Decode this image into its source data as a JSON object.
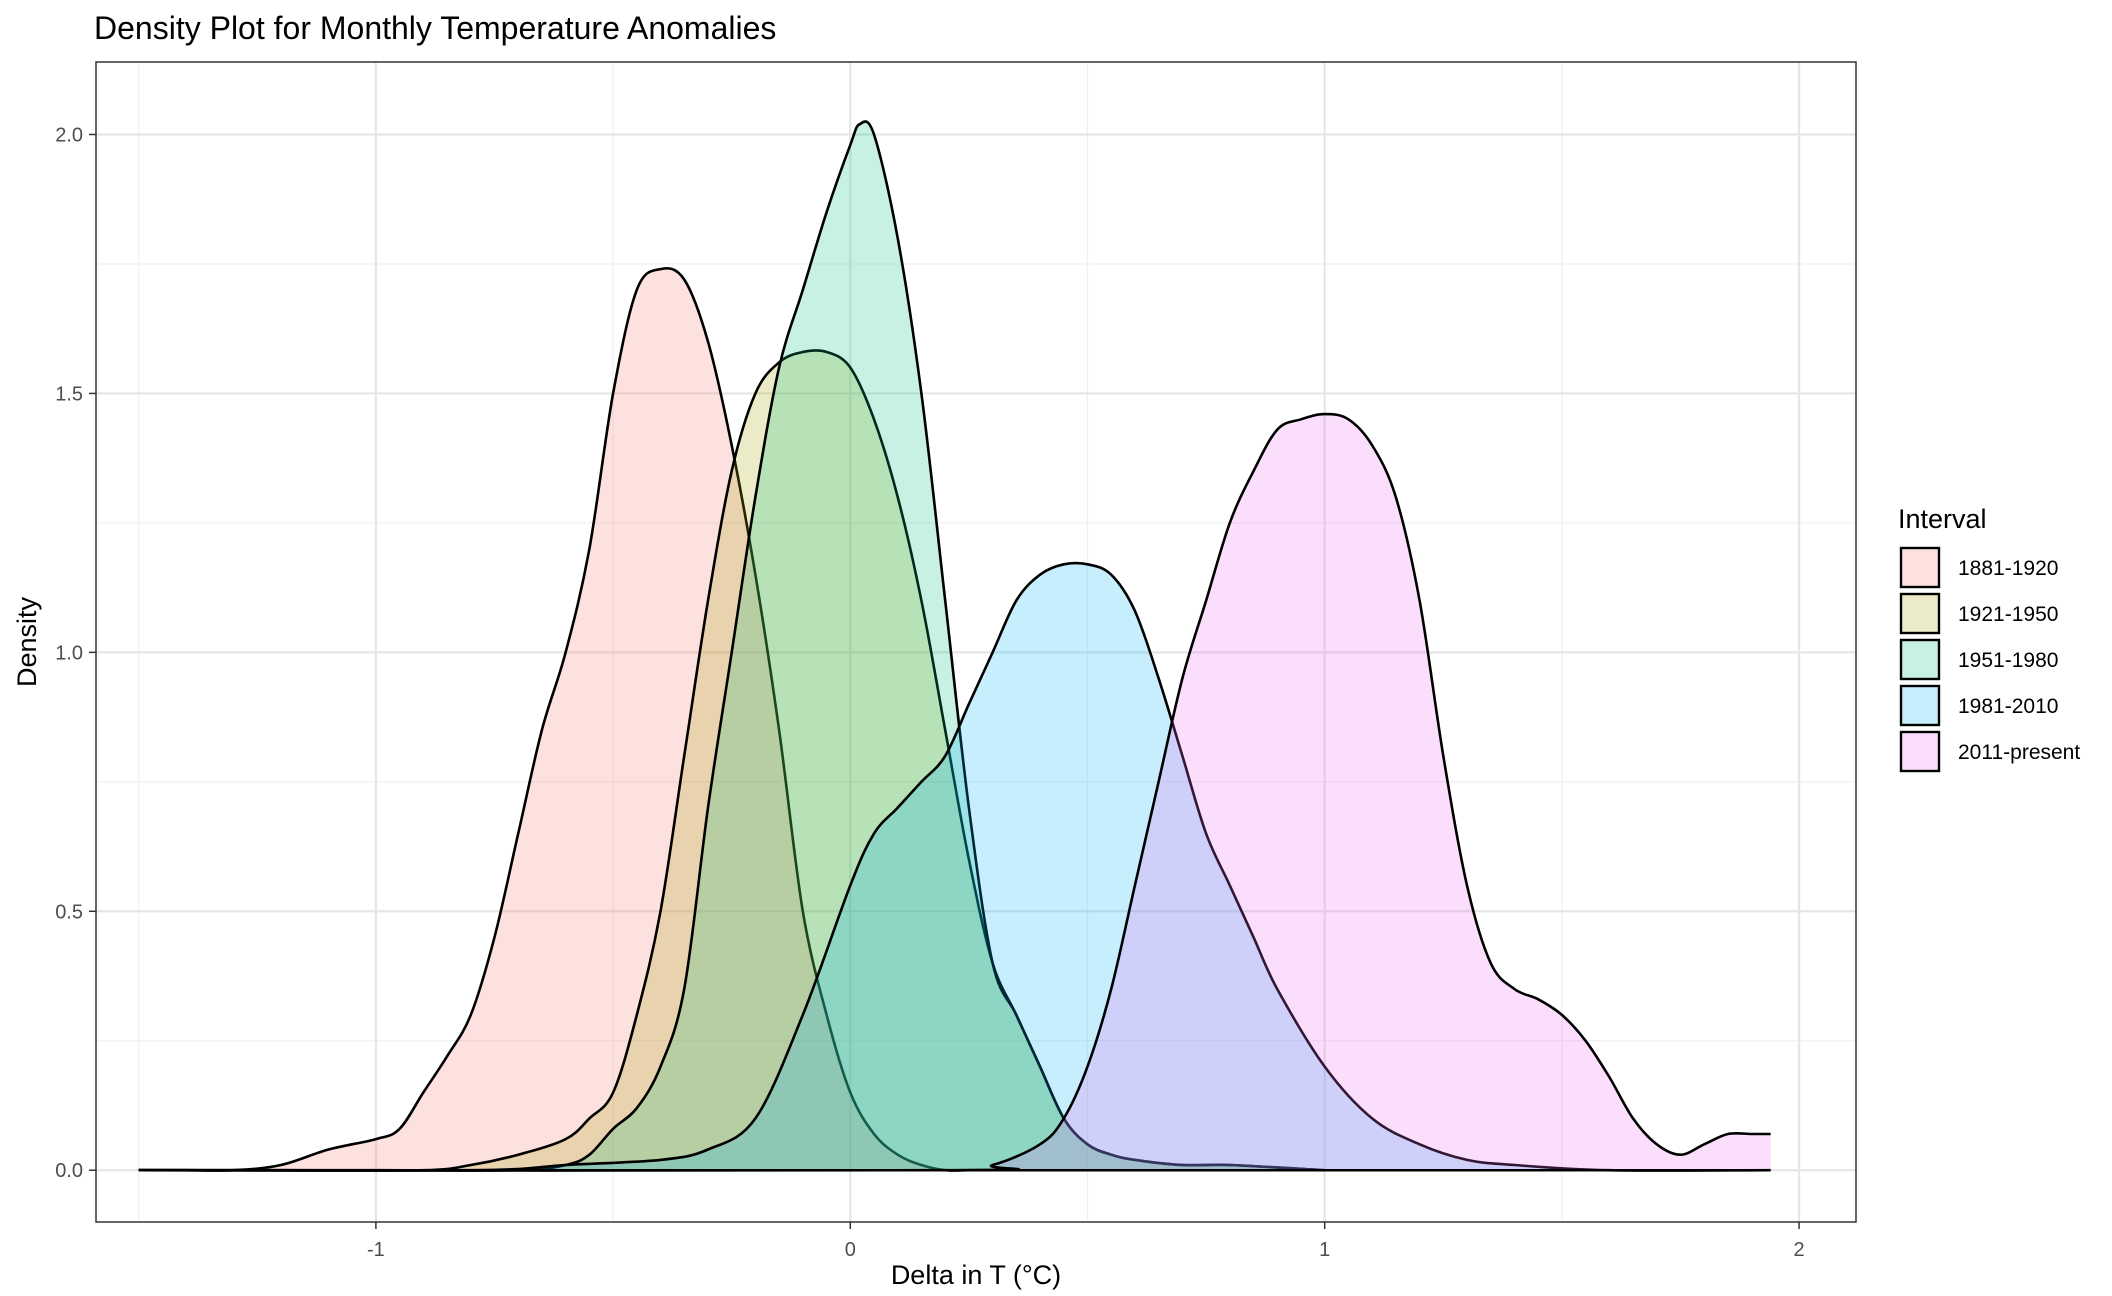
{
  "chart_data": {
    "type": "area",
    "subtype": "density",
    "title": "Density Plot for Monthly Temperature Anomalies",
    "xlabel": "Delta in T (°C)",
    "ylabel": "Density",
    "xlim": [
      -1.59,
      2.12
    ],
    "ylim": [
      -0.1,
      2.14
    ],
    "x_ticks": [
      -1,
      0,
      1,
      2
    ],
    "x_tick_labels": [
      "-1",
      "0",
      "1",
      "2"
    ],
    "y_ticks": [
      0.0,
      0.5,
      1.0,
      1.5,
      2.0
    ],
    "y_tick_labels": [
      "0.0",
      "0.5",
      "1.0",
      "1.5",
      "2.0"
    ],
    "grid": true,
    "theme": "bw",
    "fill_alpha": 0.22,
    "outline_color": "#000000",
    "legend": {
      "title": "Interval",
      "position": "right"
    },
    "series": [
      {
        "name": "1881-1920",
        "color": "#F8766D",
        "x": [
          -1.5,
          -1.4,
          -1.3,
          -1.2,
          -1.1,
          -1.0,
          -0.95,
          -0.9,
          -0.85,
          -0.8,
          -0.75,
          -0.7,
          -0.65,
          -0.6,
          -0.55,
          -0.5,
          -0.45,
          -0.4,
          -0.35,
          -0.3,
          -0.25,
          -0.2,
          -0.15,
          -0.1,
          -0.05,
          0.0,
          0.05,
          0.1,
          0.15,
          0.2,
          0.25,
          0.3
        ],
        "y": [
          0.0,
          0.0,
          0.0,
          0.01,
          0.04,
          0.06,
          0.08,
          0.15,
          0.22,
          0.3,
          0.45,
          0.65,
          0.85,
          1.0,
          1.2,
          1.5,
          1.7,
          1.74,
          1.72,
          1.6,
          1.4,
          1.15,
          0.85,
          0.5,
          0.3,
          0.15,
          0.07,
          0.03,
          0.01,
          0.0,
          0.0,
          0.0
        ]
      },
      {
        "name": "1921-1950",
        "color": "#A3A500",
        "x": [
          -1.5,
          -1.2,
          -0.9,
          -0.8,
          -0.7,
          -0.6,
          -0.55,
          -0.5,
          -0.45,
          -0.4,
          -0.35,
          -0.3,
          -0.25,
          -0.2,
          -0.15,
          -0.1,
          -0.05,
          0.0,
          0.05,
          0.1,
          0.15,
          0.2,
          0.25,
          0.3,
          0.35,
          0.4,
          0.45,
          0.5,
          0.55,
          0.6,
          0.7,
          0.8,
          1.0
        ],
        "y": [
          0.0,
          0.0,
          0.0,
          0.01,
          0.03,
          0.06,
          0.1,
          0.15,
          0.3,
          0.5,
          0.8,
          1.1,
          1.35,
          1.5,
          1.56,
          1.58,
          1.58,
          1.55,
          1.45,
          1.3,
          1.1,
          0.85,
          0.6,
          0.4,
          0.3,
          0.2,
          0.1,
          0.05,
          0.03,
          0.02,
          0.01,
          0.01,
          0.0
        ]
      },
      {
        "name": "1951-1980",
        "color": "#00BF7D",
        "x": [
          -1.5,
          -1.0,
          -0.7,
          -0.6,
          -0.55,
          -0.5,
          -0.45,
          -0.4,
          -0.35,
          -0.3,
          -0.25,
          -0.2,
          -0.15,
          -0.1,
          -0.05,
          0.0,
          0.02,
          0.05,
          0.1,
          0.15,
          0.2,
          0.25,
          0.3,
          0.35,
          0.4,
          0.45,
          0.5,
          0.55,
          0.6,
          0.7,
          0.8,
          1.0
        ],
        "y": [
          0.0,
          0.0,
          0.0,
          0.01,
          0.03,
          0.08,
          0.12,
          0.2,
          0.35,
          0.7,
          1.0,
          1.3,
          1.55,
          1.7,
          1.85,
          1.98,
          2.02,
          2.0,
          1.8,
          1.5,
          1.1,
          0.7,
          0.4,
          0.3,
          0.2,
          0.1,
          0.05,
          0.03,
          0.02,
          0.01,
          0.01,
          0.0
        ]
      },
      {
        "name": "1981-2010",
        "color": "#00B0F6",
        "x": [
          -1.5,
          -0.8,
          -0.6,
          -0.4,
          -0.3,
          -0.2,
          -0.1,
          0.0,
          0.05,
          0.1,
          0.15,
          0.2,
          0.25,
          0.3,
          0.35,
          0.4,
          0.45,
          0.5,
          0.55,
          0.6,
          0.65,
          0.7,
          0.75,
          0.8,
          0.85,
          0.9,
          1.0,
          1.1,
          1.2,
          1.3,
          1.4,
          1.6,
          1.94
        ],
        "y": [
          0.0,
          0.0,
          0.01,
          0.02,
          0.04,
          0.1,
          0.3,
          0.55,
          0.65,
          0.7,
          0.75,
          0.8,
          0.9,
          1.0,
          1.1,
          1.15,
          1.17,
          1.17,
          1.15,
          1.08,
          0.95,
          0.8,
          0.65,
          0.55,
          0.45,
          0.35,
          0.2,
          0.1,
          0.05,
          0.02,
          0.01,
          0.0,
          0.0
        ]
      },
      {
        "name": "2011-present",
        "color": "#E76BF3",
        "x": [
          -1.5,
          0.2,
          0.3,
          0.4,
          0.45,
          0.5,
          0.55,
          0.6,
          0.65,
          0.7,
          0.75,
          0.8,
          0.85,
          0.9,
          0.95,
          1.0,
          1.05,
          1.1,
          1.15,
          1.2,
          1.25,
          1.3,
          1.35,
          1.4,
          1.45,
          1.5,
          1.55,
          1.6,
          1.65,
          1.7,
          1.75,
          1.8,
          1.85,
          1.9,
          1.94
        ],
        "y": [
          0.0,
          0.0,
          0.01,
          0.05,
          0.1,
          0.2,
          0.35,
          0.55,
          0.75,
          0.95,
          1.1,
          1.25,
          1.35,
          1.43,
          1.45,
          1.46,
          1.45,
          1.4,
          1.3,
          1.1,
          0.8,
          0.55,
          0.4,
          0.35,
          0.33,
          0.3,
          0.25,
          0.18,
          0.1,
          0.05,
          0.03,
          0.05,
          0.07,
          0.07,
          0.07
        ]
      }
    ]
  }
}
